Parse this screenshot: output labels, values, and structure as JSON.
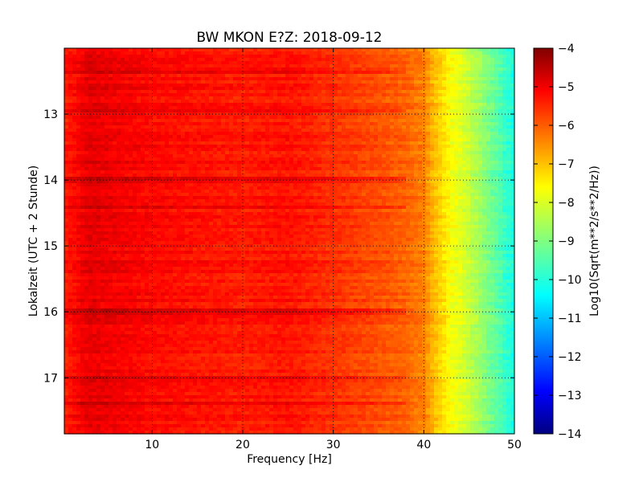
{
  "chart_data": {
    "type": "heatmap",
    "title": "BW MKON E?Z: 2018-09-12",
    "xlabel": "Frequency [Hz]",
    "ylabel": "Lokalzeit (UTC + 2 Stunde)",
    "xlim": [
      0.3,
      50
    ],
    "ylim": [
      12.0,
      17.85
    ],
    "y_inverted": true,
    "x_ticks": [
      10,
      20,
      30,
      40,
      50
    ],
    "y_ticks": [
      13,
      14,
      15,
      16,
      17
    ],
    "grid": true,
    "colormap": "jet",
    "colorbar": {
      "label": "Log10(Sqrt(m**2/s**2/Hz))",
      "range": [
        -14,
        -4
      ],
      "ticks": [
        -4,
        -5,
        -6,
        -7,
        -8,
        -9,
        -10,
        -11,
        -12,
        -13,
        -14
      ]
    },
    "spectrum_profile": {
      "frequency_hz": [
        0.3,
        3,
        10,
        20,
        25,
        30,
        35,
        38,
        40,
        41,
        42,
        43,
        44,
        45,
        46,
        47,
        48,
        49,
        50
      ],
      "value": [
        -5.5,
        -5.0,
        -5.3,
        -5.5,
        -5.4,
        -5.7,
        -6.0,
        -6.2,
        -6.5,
        -7.0,
        -7.4,
        -7.8,
        -8.0,
        -8.3,
        -8.6,
        -9.0,
        -9.3,
        -9.7,
        -10.0
      ]
    },
    "stronger_bands_hours": [
      12.35,
      12.95,
      14.0,
      14.4,
      16.0,
      17.0,
      17.4
    ]
  }
}
